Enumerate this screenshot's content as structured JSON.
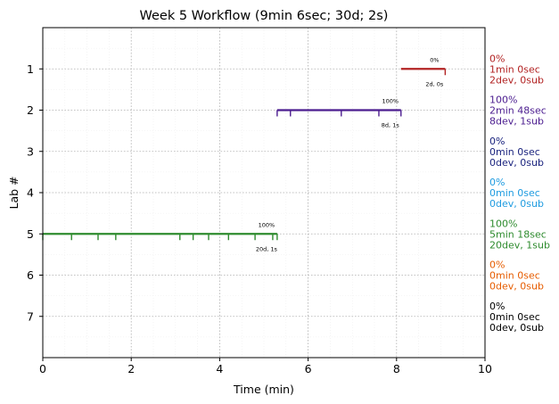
{
  "chart_data": {
    "type": "timeline",
    "title": "Week 5 Workflow (9min 6sec; 30d; 2s)",
    "xlabel": "Time (min)",
    "ylabel": "Lab #",
    "xlim": [
      0,
      10
    ],
    "ylim": [
      8,
      0
    ],
    "xticks": [
      "0",
      "2",
      "4",
      "6",
      "8",
      "10"
    ],
    "yticks": [
      "1",
      "2",
      "3",
      "4",
      "5",
      "6",
      "7"
    ],
    "grid": true,
    "labs": [
      {
        "lab": 1,
        "color": "#b22222",
        "start": 8.1,
        "end": 9.1,
        "events": [
          9.1
        ],
        "pct_label": "0%",
        "count_label": "2d, 0s",
        "side_lines": [
          "0%",
          "1min 0sec",
          "2dev, 0sub"
        ]
      },
      {
        "lab": 2,
        "color": "#4b1c8f",
        "start": 5.3,
        "end": 8.1,
        "events": [
          5.3,
          5.6,
          6.75,
          7.6,
          8.1
        ],
        "pct_label": "100%",
        "count_label": "8d, 1s",
        "side_lines": [
          "100%",
          "2min 48sec",
          "8dev, 1sub"
        ]
      },
      {
        "lab": 3,
        "color": "#1a237e",
        "side_lines": [
          "0%",
          "0min 0sec",
          "0dev, 0sub"
        ]
      },
      {
        "lab": 4,
        "color": "#1e9be0",
        "side_lines": [
          "0%",
          "0min 0sec",
          "0dev, 0sub"
        ]
      },
      {
        "lab": 5,
        "color": "#2e8b2e",
        "start": 0.0,
        "end": 5.3,
        "events": [
          0.0,
          0.65,
          1.25,
          1.65,
          3.1,
          3.4,
          3.75,
          4.2,
          4.8,
          5.2,
          5.3
        ],
        "pct_label": "100%",
        "count_label": "20d, 1s",
        "side_lines": [
          "100%",
          "5min 18sec",
          "20dev, 1sub"
        ]
      },
      {
        "lab": 6,
        "color": "#e65c00",
        "side_lines": [
          "0%",
          "0min 0sec",
          "0dev, 0sub"
        ]
      },
      {
        "lab": 7,
        "color": "#000000",
        "side_lines": [
          "0%",
          "0min 0sec",
          "0dev, 0sub"
        ]
      }
    ]
  }
}
